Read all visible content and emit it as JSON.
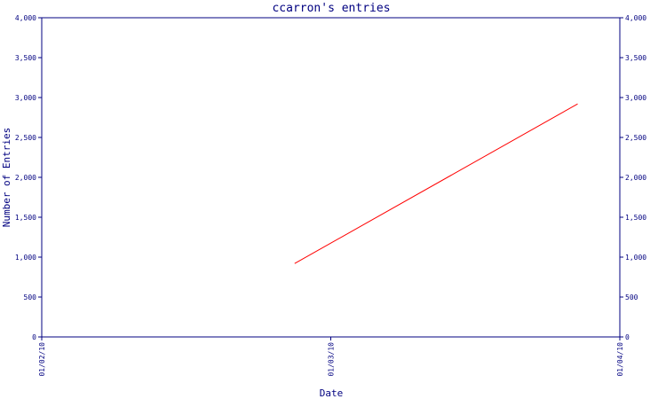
{
  "chart_data": {
    "type": "line",
    "title": "ccarron's entries",
    "xlabel": "Date",
    "ylabel": "Number of Entries",
    "x_ticks": [
      "01/02/10",
      "01/03/10",
      "01/04/10"
    ],
    "y_ticks": [
      "0",
      "500",
      "1,000",
      "1,500",
      "2,000",
      "2,500",
      "3,000",
      "3,500",
      "4,000"
    ],
    "ylim": [
      0,
      4000
    ],
    "xlim": [
      "2010-01-02",
      "2010-01-04"
    ],
    "grid": false,
    "series": [
      {
        "color": "#ff0000",
        "points": [
          {
            "x": "2010-01-02 21:00",
            "y": 920
          },
          {
            "x": "2010-01-03 20:30",
            "y": 2920
          }
        ]
      }
    ]
  },
  "colors": {
    "axis": "#000080",
    "text": "#000080",
    "line": "#ff0000"
  }
}
